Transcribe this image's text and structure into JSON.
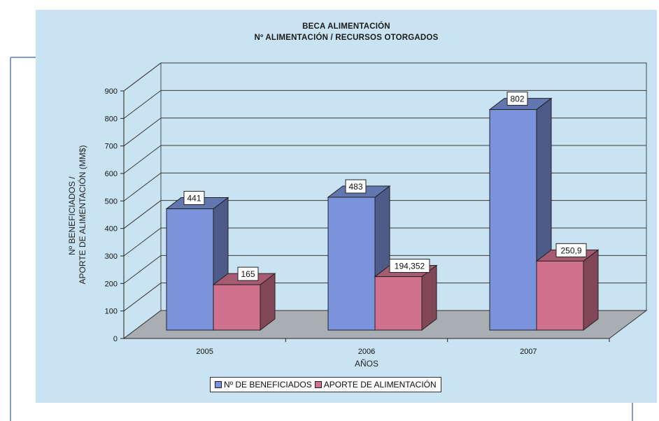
{
  "chart_data": {
    "type": "bar",
    "title": "BECA ALIMENTACIÓN",
    "subtitle": "Nº ALIMENTACIÓN /  RECURSOS OTORGADOS",
    "xlabel": "AÑOS",
    "ylabel_lines": [
      "Nº BENEFICIADOS /",
      "APORTE DE ALIMENTACIÓN (MM$)"
    ],
    "categories": [
      "2005",
      "2006",
      "2007"
    ],
    "series": [
      {
        "name": "Nº DE BENEFICIADOS",
        "values": [
          441,
          483,
          802
        ],
        "labels": [
          "441",
          "483",
          "802"
        ],
        "color": "#7b93dc"
      },
      {
        "name": "APORTE DE ALIMENTACIÓN",
        "values": [
          165,
          194.352,
          250.9
        ],
        "labels": [
          "165",
          "194,352",
          "250,9"
        ],
        "color": "#d0728e"
      }
    ],
    "ylim": [
      0,
      900
    ],
    "yticks": [
      "0",
      "100",
      "200",
      "300",
      "400",
      "500",
      "600",
      "700",
      "800",
      "900"
    ],
    "grid": true,
    "legend_position": "bottom",
    "background_color": "#c9e3f3",
    "floor_color": "#a9aeb3"
  }
}
